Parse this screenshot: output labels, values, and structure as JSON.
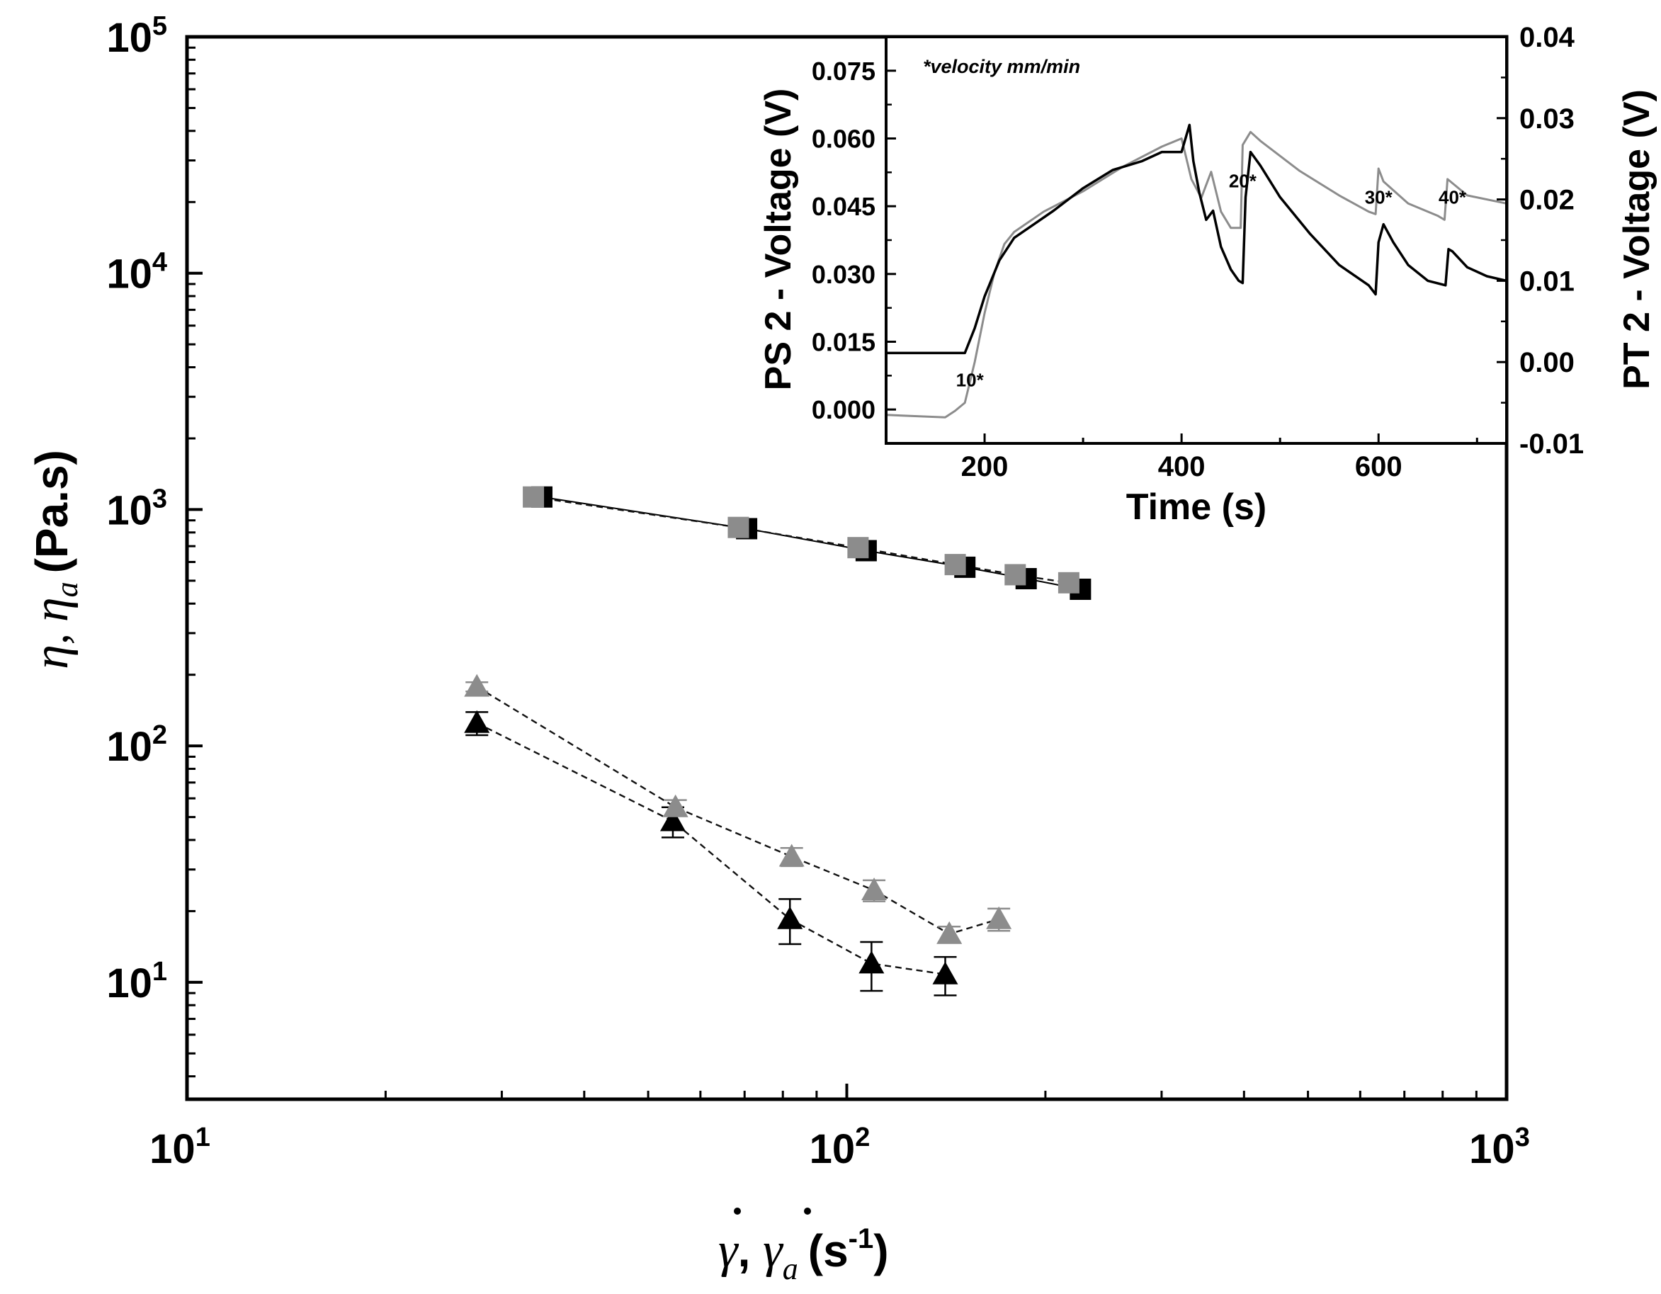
{
  "chart_data": [
    {
      "type": "scatter",
      "scale": "log-log",
      "xlabel": {
        "sym1": "γ",
        "sep": ", ",
        "sym2": "γ",
        "sub": "a",
        "unit_open": "(s",
        "unit_exp": "-1",
        "unit_close": ")"
      },
      "ylabel": {
        "sym1": "η",
        "sep": ", ",
        "sym2": "η",
        "sub": "a",
        "unit": "(Pa.s)"
      },
      "xlim": [
        10,
        1000
      ],
      "ylim": [
        3.2,
        100000
      ],
      "x_ticks": [
        {
          "base": "10",
          "exp": "1",
          "value": 10
        },
        {
          "base": "10",
          "exp": "2",
          "value": 100
        },
        {
          "base": "10",
          "exp": "3",
          "value": 1000
        }
      ],
      "y_ticks": [
        {
          "base": "10",
          "exp": "1",
          "value": 10
        },
        {
          "base": "10",
          "exp": "2",
          "value": 100
        },
        {
          "base": "10",
          "exp": "3",
          "value": 1000
        },
        {
          "base": "10",
          "exp": "4",
          "value": 10000
        },
        {
          "base": "10",
          "exp": "5",
          "value": 100000
        }
      ],
      "series": [
        {
          "name": "eta_squares_black",
          "marker": "square",
          "color": "#000000",
          "line": "solid",
          "x": [
            34.5,
            70.5,
            107,
            151,
            187,
            226
          ],
          "y": [
            1130,
            830,
            670,
            570,
            510,
            460
          ],
          "err": [
            0,
            0,
            0,
            0,
            0,
            0
          ]
        },
        {
          "name": "eta_a_squares_gray",
          "marker": "square",
          "color": "#8c8c8c",
          "line": "dashed",
          "x": [
            33.5,
            68.5,
            104,
            146,
            180,
            217
          ],
          "y": [
            1130,
            840,
            690,
            585,
            530,
            490
          ],
          "err": [
            0,
            0,
            0,
            0,
            0,
            0
          ]
        },
        {
          "name": "eta_a_triangles_black",
          "marker": "triangle",
          "color": "#000000",
          "line": "dashed",
          "x": [
            27.5,
            54.5,
            82,
            109,
            141
          ],
          "y": [
            125,
            48,
            18.5,
            12,
            10.8
          ],
          "err": [
            14,
            7,
            4,
            2.8,
            2
          ]
        },
        {
          "name": "eta_a_triangles_gray",
          "marker": "triangle",
          "color": "#8c8c8c",
          "line": "dashed",
          "x": [
            27.5,
            55,
            82.5,
            110,
            143,
            170
          ],
          "y": [
            178,
            55,
            34,
            24.5,
            16,
            18.5
          ],
          "err": [
            8,
            4,
            3,
            2.5,
            1.2,
            2
          ]
        }
      ]
    },
    {
      "type": "line",
      "inset": true,
      "annotation": "*velocity mm/min",
      "xlabel": "Time (s)",
      "ylabel_left": "PS 2 - Voltage (V)",
      "ylabel_right": "PT 2 - Voltage (V)",
      "xlim": [
        100,
        730
      ],
      "ylim_left": [
        -0.0075,
        0.0825
      ],
      "ylim_right": [
        -0.01,
        0.04
      ],
      "x_ticks": [
        "200",
        "400",
        "600"
      ],
      "x_tick_values": [
        200,
        400,
        600
      ],
      "y_left_ticks": [
        "0.000",
        "0.015",
        "0.030",
        "0.045",
        "0.060",
        "0.075"
      ],
      "y_left_tick_values": [
        0,
        0.015,
        0.03,
        0.045,
        0.06,
        0.075
      ],
      "y_right_ticks": [
        "-0.01",
        "0.00",
        "0.01",
        "0.02",
        "0.03",
        "0.04"
      ],
      "y_right_tick_values": [
        -0.01,
        0,
        0.01,
        0.02,
        0.03,
        0.04
      ],
      "event_labels": [
        {
          "text": "10*",
          "x": 185,
          "y": -0.003
        },
        {
          "text": "20*",
          "x": 462,
          "y": 0.0215
        },
        {
          "text": "30*",
          "x": 600,
          "y": 0.0195
        },
        {
          "text": "40*",
          "x": 675,
          "y": 0.0195
        }
      ],
      "series": [
        {
          "name": "PS 2 - Voltage",
          "axis": "left",
          "color": "#000000",
          "x": [
            100,
            180,
            190,
            200,
            215,
            230,
            250,
            270,
            300,
            330,
            360,
            380,
            400,
            408,
            412,
            418,
            425,
            432,
            440,
            450,
            458,
            462,
            465,
            470,
            480,
            500,
            530,
            560,
            590,
            597,
            600,
            605,
            615,
            630,
            650,
            668,
            671,
            675,
            690,
            710,
            730
          ],
          "y": [
            0.0125,
            0.0125,
            0.018,
            0.025,
            0.033,
            0.038,
            0.041,
            0.044,
            0.049,
            0.053,
            0.055,
            0.057,
            0.057,
            0.063,
            0.055,
            0.048,
            0.042,
            0.044,
            0.036,
            0.031,
            0.0285,
            0.028,
            0.047,
            0.057,
            0.054,
            0.047,
            0.039,
            0.032,
            0.0275,
            0.0255,
            0.037,
            0.041,
            0.037,
            0.032,
            0.0285,
            0.0275,
            0.0355,
            0.035,
            0.0315,
            0.0295,
            0.0285
          ]
        },
        {
          "name": "PT 2 - Voltage",
          "axis": "right",
          "color": "#8c8c8c",
          "x": [
            100,
            160,
            170,
            180,
            190,
            200,
            210,
            220,
            230,
            260,
            300,
            340,
            380,
            400,
            410,
            420,
            430,
            440,
            450,
            460,
            462,
            470,
            480,
            520,
            560,
            590,
            597,
            600,
            605,
            630,
            660,
            667,
            670,
            690,
            730
          ],
          "y": [
            -0.0065,
            -0.0068,
            -0.006,
            -0.005,
            0.0,
            0.006,
            0.011,
            0.0145,
            0.016,
            0.0185,
            0.021,
            0.024,
            0.0265,
            0.0275,
            0.0225,
            0.0202,
            0.0234,
            0.0185,
            0.0165,
            0.0165,
            0.0267,
            0.0283,
            0.0272,
            0.0235,
            0.0205,
            0.0185,
            0.0182,
            0.0238,
            0.0222,
            0.0195,
            0.018,
            0.0175,
            0.0225,
            0.0205,
            0.0195
          ]
        }
      ]
    }
  ]
}
